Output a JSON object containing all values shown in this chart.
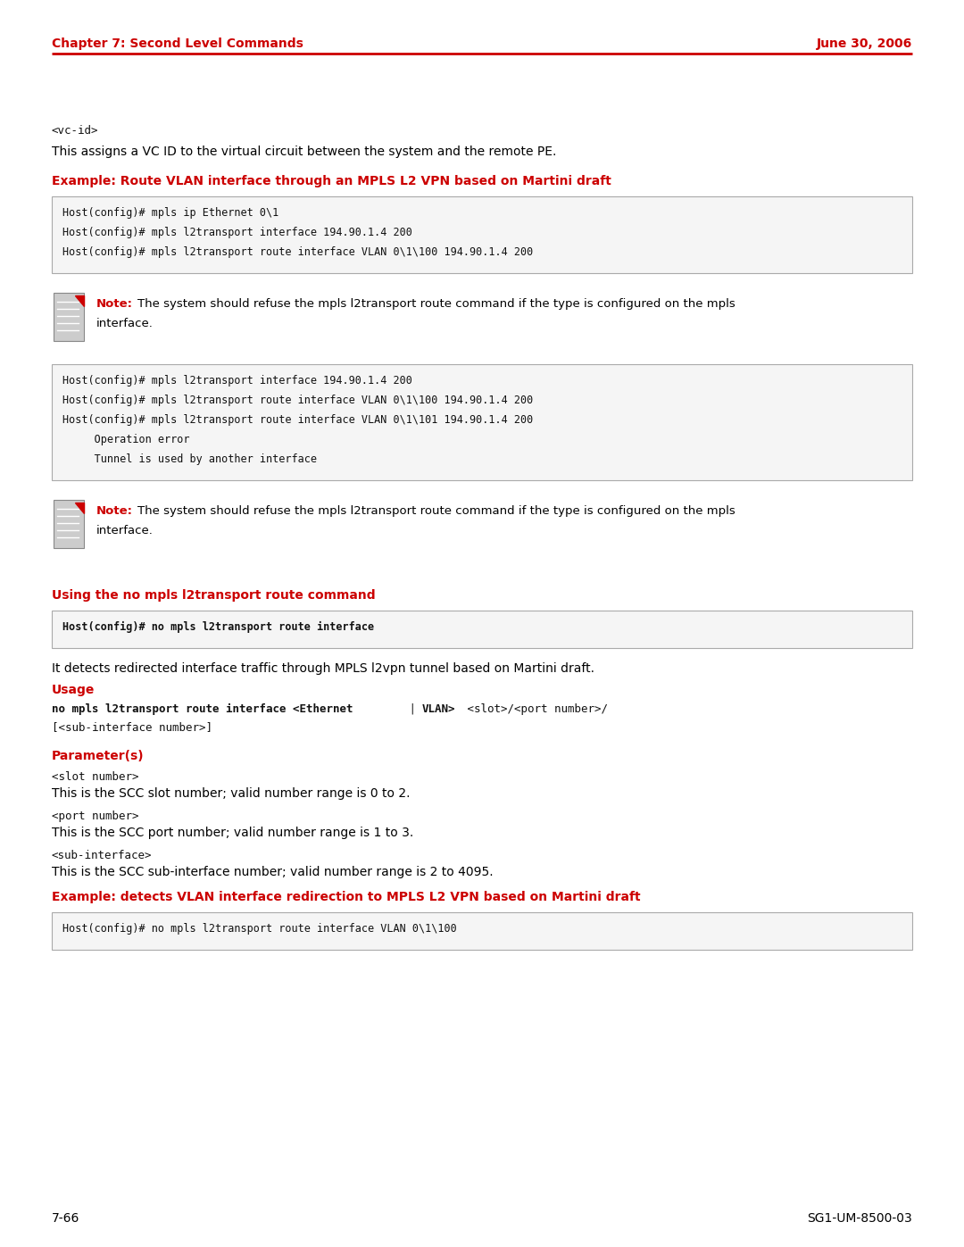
{
  "page_width": 10.8,
  "page_height": 13.97,
  "dpi": 100,
  "bg_color": "#ffffff",
  "header_left": "Chapter 7: Second Level Commands",
  "header_right": "June 30, 2006",
  "red_color": "#cc0000",
  "black_color": "#000000",
  "footer_left": "7-66",
  "footer_right": "SG1-UM-8500-03",
  "codebox_bg": "#f5f5f5",
  "codebox_border": "#aaaaaa",
  "note_icon_bg": "#cccccc",
  "note_icon_border": "#888888"
}
